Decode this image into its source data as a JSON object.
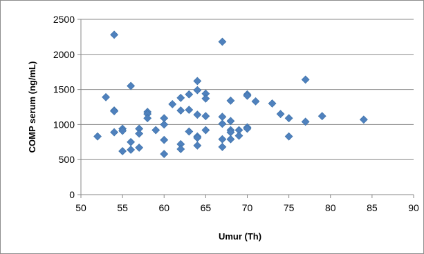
{
  "chart_data": {
    "type": "scatter",
    "xlabel": "Umur (Th)",
    "ylabel": "COMP serum (ng/mL)",
    "xlim": [
      50,
      90
    ],
    "ylim": [
      0,
      2500
    ],
    "x_ticks": [
      50,
      55,
      60,
      65,
      70,
      75,
      80,
      85,
      90
    ],
    "y_ticks": [
      0,
      500,
      1000,
      1500,
      2000,
      2500
    ],
    "grid": "horizontal",
    "legend": "none",
    "marker": "diamond",
    "marker_color": "#4f81bd",
    "points": [
      [
        52,
        830
      ],
      [
        53,
        1390
      ],
      [
        54,
        2280
      ],
      [
        54,
        1200
      ],
      [
        54,
        1190
      ],
      [
        54,
        890
      ],
      [
        55,
        940
      ],
      [
        55,
        910
      ],
      [
        55,
        620
      ],
      [
        56,
        1550
      ],
      [
        56,
        750
      ],
      [
        56,
        640
      ],
      [
        57,
        940
      ],
      [
        57,
        870
      ],
      [
        57,
        670
      ],
      [
        58,
        1180
      ],
      [
        58,
        1150
      ],
      [
        58,
        1090
      ],
      [
        59,
        920
      ],
      [
        60,
        1090
      ],
      [
        60,
        1000
      ],
      [
        60,
        780
      ],
      [
        60,
        580
      ],
      [
        61,
        1290
      ],
      [
        62,
        1380
      ],
      [
        62,
        1200
      ],
      [
        62,
        720
      ],
      [
        62,
        650
      ],
      [
        63,
        1430
      ],
      [
        63,
        1210
      ],
      [
        63,
        900
      ],
      [
        64,
        1620
      ],
      [
        64,
        1490
      ],
      [
        64,
        1140
      ],
      [
        64,
        830
      ],
      [
        64,
        810
      ],
      [
        64,
        700
      ],
      [
        65,
        1440
      ],
      [
        65,
        1370
      ],
      [
        65,
        1120
      ],
      [
        65,
        920
      ],
      [
        67,
        2180
      ],
      [
        67,
        1110
      ],
      [
        67,
        1010
      ],
      [
        67,
        790
      ],
      [
        67,
        680
      ],
      [
        68,
        1340
      ],
      [
        68,
        1050
      ],
      [
        68,
        920
      ],
      [
        68,
        890
      ],
      [
        68,
        790
      ],
      [
        69,
        920
      ],
      [
        69,
        840
      ],
      [
        70,
        1430
      ],
      [
        70,
        1410
      ],
      [
        70,
        960
      ],
      [
        70,
        940
      ],
      [
        71,
        1330
      ],
      [
        73,
        1300
      ],
      [
        74,
        1150
      ],
      [
        75,
        1090
      ],
      [
        75,
        830
      ],
      [
        77,
        1640
      ],
      [
        77,
        1040
      ],
      [
        79,
        1120
      ],
      [
        84,
        1070
      ]
    ]
  }
}
